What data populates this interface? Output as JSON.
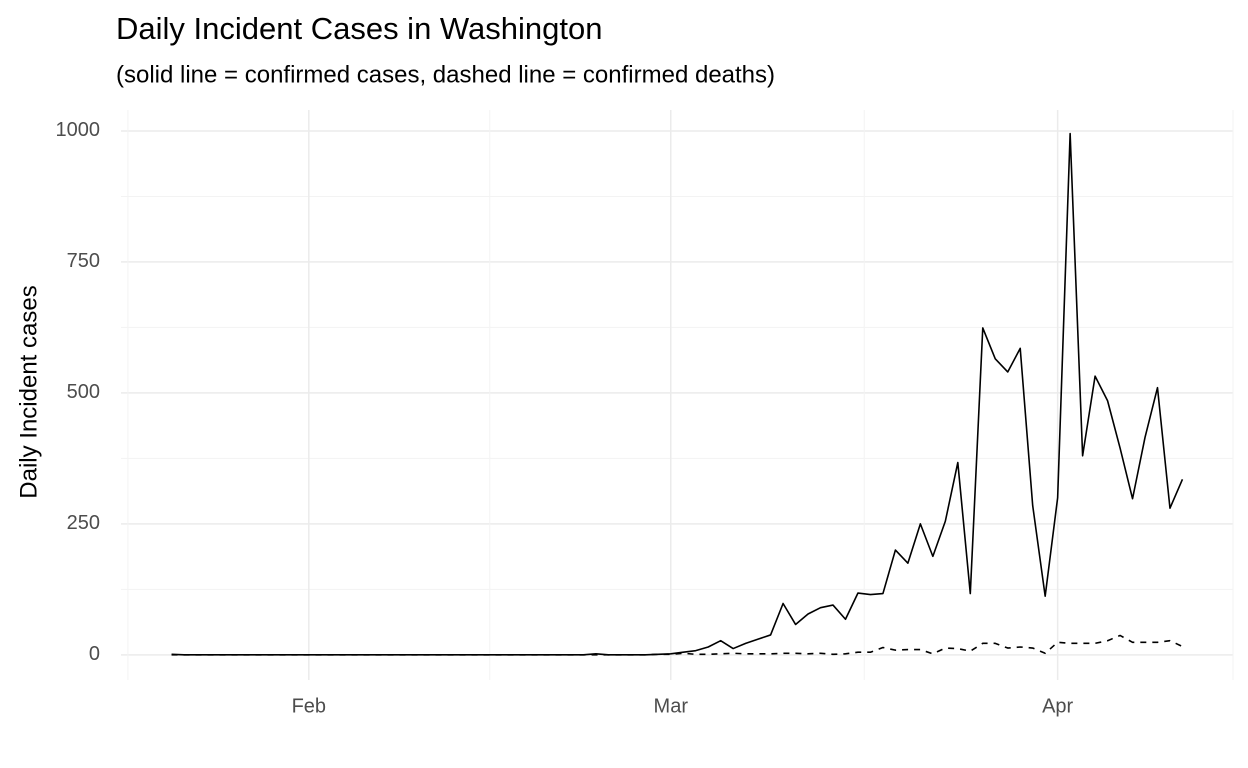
{
  "chart_data": {
    "type": "line",
    "title": "Daily Incident Cases in Washington",
    "subtitle": "(solid line = confirmed cases, dashed line = confirmed deaths)",
    "y_label": "Daily Incident cases",
    "categories": [
      null,
      null,
      null,
      null,
      null,
      null,
      null,
      null,
      null,
      null,
      null,
      "Feb",
      null,
      null,
      null,
      null,
      null,
      null,
      null,
      null,
      null,
      null,
      null,
      null,
      null,
      null,
      null,
      null,
      null,
      null,
      null,
      null,
      null,
      null,
      null,
      null,
      null,
      null,
      null,
      null,
      "Mar",
      null,
      null,
      null,
      null,
      null,
      null,
      null,
      null,
      null,
      null,
      null,
      null,
      null,
      null,
      null,
      null,
      null,
      null,
      null,
      null,
      null,
      null,
      null,
      null,
      null,
      null,
      null,
      null,
      null,
      null,
      "Apr",
      null,
      null,
      null,
      null,
      null,
      null,
      null,
      null,
      null,
      null
    ],
    "series": [
      {
        "color": "#000000",
        "linestyle": "solid",
        "values": [
          1,
          0,
          0,
          0,
          0,
          0,
          0,
          0,
          0,
          0,
          0,
          0,
          0,
          0,
          0,
          0,
          0,
          0,
          0,
          0,
          0,
          0,
          0,
          0,
          0,
          0,
          0,
          0,
          0,
          0,
          0,
          0,
          0,
          0,
          2,
          0,
          0,
          0,
          0,
          1,
          2,
          5,
          8,
          15,
          27,
          12,
          22,
          30,
          38,
          98,
          58,
          78,
          90,
          95,
          68,
          118,
          115,
          117,
          200,
          175,
          250,
          188,
          255,
          367,
          117,
          624,
          565,
          540,
          585,
          285,
          112,
          300,
          995,
          380,
          532,
          485,
          395,
          298,
          415,
          510,
          280,
          335
        ]
      },
      {
        "color": "#000000",
        "linestyle": "dashed",
        "values": [
          0,
          0,
          0,
          0,
          0,
          0,
          0,
          0,
          0,
          0,
          0,
          0,
          0,
          0,
          0,
          0,
          0,
          0,
          0,
          0,
          0,
          0,
          0,
          0,
          0,
          0,
          0,
          0,
          0,
          0,
          0,
          0,
          0,
          0,
          0,
          0,
          0,
          0,
          0,
          1,
          1,
          3,
          1,
          1,
          2,
          3,
          2,
          2,
          2,
          3,
          3,
          2,
          3,
          1,
          2,
          5,
          5,
          14,
          9,
          10,
          10,
          2,
          13,
          12,
          7,
          22,
          22,
          13,
          15,
          13,
          3,
          24,
          22,
          22,
          22,
          27,
          37,
          24,
          24,
          24,
          27,
          16
        ]
      }
    ],
    "ylim": [
      -48,
      1040
    ],
    "yticks": [
      0,
      250,
      500,
      750,
      1000
    ],
    "grid": true
  }
}
